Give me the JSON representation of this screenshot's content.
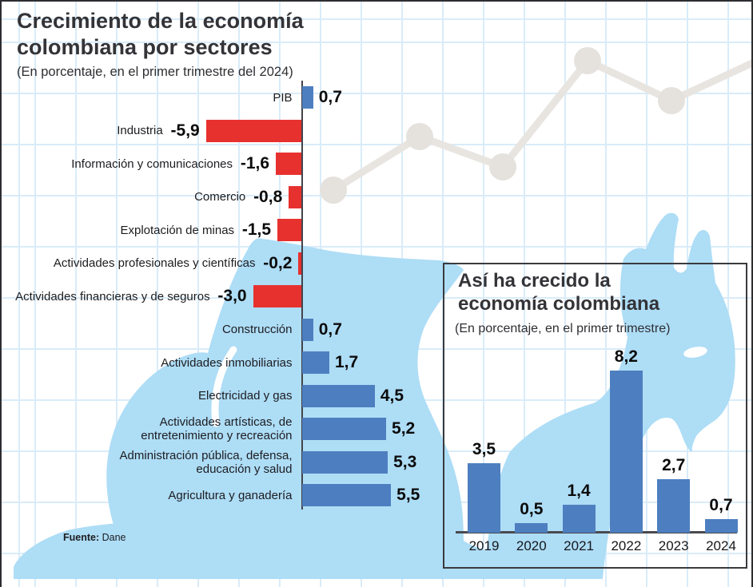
{
  "header": {
    "title_line1": "Crecimiento de la economía",
    "title_line2": "colombiana por sectores",
    "subtitle": "(En porcentaje, en el primer trimestre del 2024)"
  },
  "inset": {
    "title_line1": "Así ha crecido la",
    "title_line2": "economía colombiana",
    "subtitle": "(En porcentaje, en el primer trimestre)"
  },
  "source": {
    "label": "Fuente:",
    "value": " Dane"
  },
  "colors": {
    "positive_bar": "#4d7fc0",
    "negative_bar": "#e7312f",
    "snail_blue": "#aeddf6",
    "grid_blue": "#d9ecf9",
    "decorative_line_gray": "#e8e5e1",
    "axis_dark": "#43434a"
  },
  "chart_data": [
    {
      "type": "bar",
      "orientation": "horizontal",
      "title": "Crecimiento de la economía colombiana por sectores",
      "subtitle": "(En porcentaje, en el primer trimestre del 2024)",
      "categories": [
        "PIB",
        "Industria",
        "Información y comunicaciones",
        "Comercio",
        "Explotación de minas",
        "Actividades profesionales y científicas",
        "Actividades financieras y de seguros",
        "Construcción",
        "Actividades inmobiliarias",
        "Electricidad y gas",
        "Actividades artísticas, de entretenimiento y recreación",
        "Administración pública, defensa, educación y salud",
        "Agricultura y ganadería"
      ],
      "category_lines": [
        [
          "PIB"
        ],
        [
          "Industria"
        ],
        [
          "Información y comunicaciones"
        ],
        [
          "Comercio"
        ],
        [
          "Explotación de minas"
        ],
        [
          "Actividades profesionales y científicas"
        ],
        [
          "Actividades financieras y de seguros"
        ],
        [
          "Construcción"
        ],
        [
          "Actividades inmobiliarias"
        ],
        [
          "Electricidad y gas"
        ],
        [
          "Actividades artísticas, de",
          "entretenimiento  y recreación"
        ],
        [
          "Administración pública, defensa,",
          "educación y salud"
        ],
        [
          "Agricultura y ganadería"
        ]
      ],
      "values": [
        0.7,
        -5.9,
        -1.6,
        -0.8,
        -1.5,
        -0.2,
        -3.0,
        0.7,
        1.7,
        4.5,
        5.2,
        5.3,
        5.5
      ],
      "value_labels": [
        "0,7",
        "-5,9",
        "-1,6",
        "-0,8",
        "-1,5",
        "-0,2",
        "-3,0",
        "0,7",
        "1,7",
        "4,5",
        "5,2",
        "5,3",
        "5,5"
      ],
      "xlim": [
        -6.5,
        6.5
      ],
      "grid": false,
      "positive_color": "#4d7fc0",
      "negative_color": "#e7312f",
      "source": "Dane"
    },
    {
      "type": "bar",
      "orientation": "vertical",
      "title": "Así ha crecido la economía colombiana",
      "subtitle": "(En porcentaje, en el primer trimestre)",
      "categories": [
        "2019",
        "2020",
        "2021",
        "2022",
        "2023",
        "2024"
      ],
      "values": [
        3.5,
        0.5,
        1.4,
        8.2,
        2.7,
        0.7
      ],
      "value_labels": [
        "3,5",
        "0,5",
        "1,4",
        "8,2",
        "2,7",
        "0,7"
      ],
      "ylim": [
        0,
        9
      ],
      "grid": false,
      "bar_color": "#4d7fc0",
      "source": "Dane"
    }
  ]
}
